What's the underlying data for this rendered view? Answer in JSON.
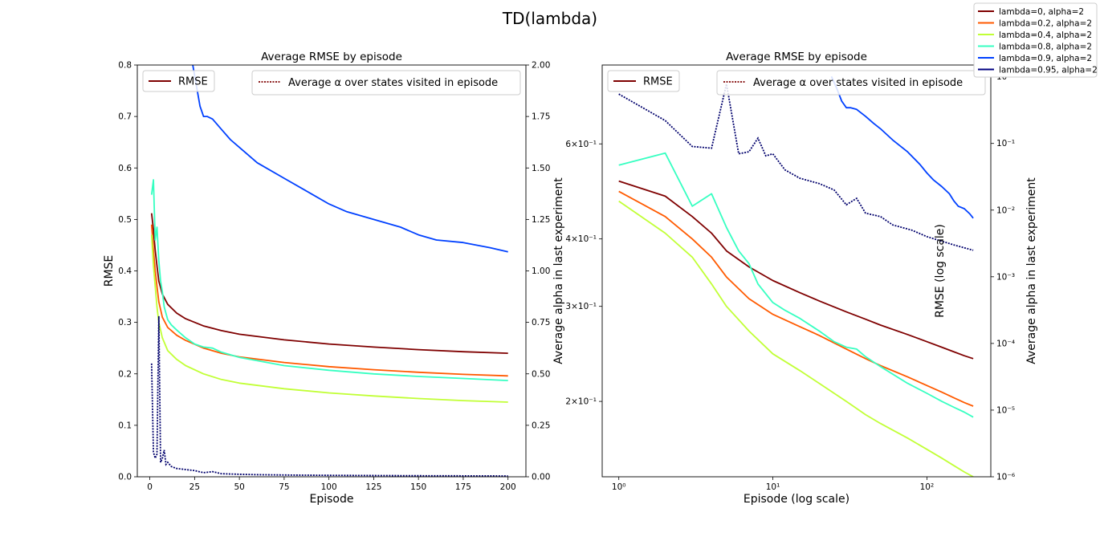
{
  "figure": {
    "title": "TD(lambda)"
  },
  "chart_data": [
    {
      "type": "line",
      "title": "Average RMSE by episode",
      "xlabel": "Episode",
      "ylabel": "RMSE",
      "y2label": "Average alpha in last experiment",
      "xlim": [
        -7,
        210
      ],
      "ylim": [
        0,
        0.8
      ],
      "y2lim": [
        0,
        2.0
      ],
      "xticks": [
        0,
        25,
        50,
        75,
        100,
        125,
        150,
        175,
        200
      ],
      "yticks": [
        0.0,
        0.1,
        0.2,
        0.3,
        0.4,
        0.5,
        0.6,
        0.7,
        0.8
      ],
      "y2ticks": [
        0.0,
        0.25,
        0.5,
        0.75,
        1.0,
        1.25,
        1.5,
        1.75,
        2.0
      ],
      "legend_left": {
        "label": "RMSE",
        "placement": "upper-left"
      },
      "legend_right": {
        "label": "Average α over states visited in episode",
        "placement": "upper-right"
      },
      "alpha_series": {
        "name": "Average α over states visited in episode",
        "color": "#00006c",
        "x": [
          1,
          2,
          3,
          4,
          5,
          6,
          7,
          8,
          9,
          10,
          12,
          15,
          20,
          25,
          30,
          35,
          40,
          50,
          60,
          80,
          100,
          150,
          200
        ],
        "y": [
          0.55,
          0.12,
          0.09,
          0.11,
          0.78,
          0.07,
          0.09,
          0.13,
          0.06,
          0.07,
          0.05,
          0.04,
          0.035,
          0.03,
          0.02,
          0.025,
          0.015,
          0.012,
          0.01,
          0.008,
          0.007,
          0.005,
          0.004
        ]
      },
      "series": [
        {
          "name": "lambda=0, alpha=2",
          "color": "#7f0000",
          "x": [
            1,
            2,
            3,
            4,
            5,
            7,
            10,
            15,
            20,
            30,
            40,
            50,
            75,
            100,
            125,
            150,
            175,
            200
          ],
          "y": [
            0.512,
            0.48,
            0.44,
            0.41,
            0.38,
            0.355,
            0.335,
            0.318,
            0.307,
            0.293,
            0.284,
            0.277,
            0.266,
            0.258,
            0.252,
            0.247,
            0.243,
            0.24
          ]
        },
        {
          "name": "lambda=0.2, alpha=2",
          "color": "#ff5a00",
          "x": [
            1,
            2,
            3,
            4,
            5,
            7,
            10,
            15,
            20,
            30,
            40,
            50,
            75,
            100,
            125,
            150,
            175,
            200
          ],
          "y": [
            0.49,
            0.44,
            0.4,
            0.37,
            0.34,
            0.31,
            0.29,
            0.275,
            0.265,
            0.25,
            0.24,
            0.233,
            0.222,
            0.214,
            0.208,
            0.203,
            0.199,
            0.196
          ]
        },
        {
          "name": "lambda=0.4, alpha=2",
          "color": "#c1ff36",
          "x": [
            1,
            2,
            3,
            4,
            5,
            7,
            10,
            15,
            20,
            30,
            40,
            50,
            75,
            100,
            125,
            150,
            175,
            200
          ],
          "y": [
            0.47,
            0.41,
            0.37,
            0.33,
            0.3,
            0.27,
            0.245,
            0.228,
            0.216,
            0.2,
            0.189,
            0.182,
            0.171,
            0.163,
            0.157,
            0.152,
            0.148,
            0.145
          ]
        },
        {
          "name": "lambda=0.8, alpha=2",
          "color": "#36ffc1",
          "x": [
            1,
            2,
            3,
            4,
            5,
            6,
            7,
            8,
            10,
            12,
            15,
            20,
            25,
            30,
            35,
            40,
            50,
            75,
            100,
            125,
            150,
            175,
            200
          ],
          "y": [
            0.548,
            0.577,
            0.46,
            0.485,
            0.42,
            0.38,
            0.36,
            0.33,
            0.305,
            0.295,
            0.285,
            0.27,
            0.258,
            0.252,
            0.25,
            0.242,
            0.232,
            0.216,
            0.207,
            0.2,
            0.195,
            0.191,
            0.187
          ]
        },
        {
          "name": "lambda=0.9, alpha=2",
          "color": "#0040ff",
          "x": [
            24,
            26,
            28,
            30,
            32,
            35,
            40,
            45,
            50,
            60,
            75,
            90,
            100,
            110,
            125,
            140,
            150,
            160,
            175,
            190,
            200
          ],
          "y": [
            0.8,
            0.76,
            0.72,
            0.7,
            0.7,
            0.695,
            0.675,
            0.655,
            0.64,
            0.61,
            0.58,
            0.55,
            0.53,
            0.515,
            0.5,
            0.485,
            0.47,
            0.46,
            0.455,
            0.445,
            0.437
          ]
        },
        {
          "name": "lambda=0.95, alpha=2",
          "color": "#000080",
          "x": [],
          "y": []
        }
      ]
    },
    {
      "type": "line",
      "title": "Average RMSE by episode",
      "xlabel": "Episode (log scale)",
      "ylabel": "RMSE (log scale)",
      "y2label": "Average alpha in last experiment",
      "xscale": "log",
      "yscale": "log",
      "y2scale": "log",
      "xlim": [
        0.78,
        260
      ],
      "ylim": [
        0.145,
        0.84
      ],
      "y2lim": [
        1e-06,
        1.5
      ],
      "xticks": [
        1,
        10,
        100
      ],
      "xtick_labels": [
        "10⁰",
        "10¹",
        "10²"
      ],
      "yticks": [
        0.2,
        0.3,
        0.4,
        0.6
      ],
      "ytick_labels": [
        "2×10⁻¹",
        "3×10⁻¹",
        "4×10⁻¹",
        "6×10⁻¹"
      ],
      "y2ticks": [
        1e-06,
        1e-05,
        0.0001,
        0.001,
        0.01,
        0.1,
        1
      ],
      "y2tick_labels": [
        "10⁻⁶",
        "10⁻⁵",
        "10⁻⁴",
        "10⁻³",
        "10⁻²",
        "10⁻¹",
        "10⁰"
      ],
      "legend_left": {
        "label": "RMSE",
        "placement": "upper-left"
      },
      "legend_right": {
        "label": "Average α over states visited in episode",
        "placement": "upper-right"
      },
      "alpha_series": {
        "name": "Average α over states visited in episode",
        "color": "#00006c",
        "x": [
          1,
          2,
          3,
          4,
          5,
          6,
          7,
          8,
          9,
          10,
          12,
          15,
          20,
          25,
          30,
          35,
          40,
          50,
          60,
          80,
          100,
          150,
          200
        ],
        "y": [
          0.55,
          0.22,
          0.09,
          0.085,
          0.78,
          0.07,
          0.075,
          0.12,
          0.065,
          0.07,
          0.04,
          0.03,
          0.025,
          0.02,
          0.012,
          0.015,
          0.009,
          0.008,
          0.006,
          0.005,
          0.004,
          0.003,
          0.0025
        ]
      },
      "series": [
        {
          "name": "lambda=0, alpha=2",
          "color": "#7f0000",
          "x": [
            1,
            2,
            3,
            4,
            5,
            7,
            10,
            15,
            20,
            30,
            40,
            50,
            75,
            100,
            125,
            150,
            175,
            200
          ],
          "y": [
            0.512,
            0.48,
            0.44,
            0.41,
            0.38,
            0.355,
            0.335,
            0.318,
            0.307,
            0.293,
            0.284,
            0.277,
            0.266,
            0.258,
            0.252,
            0.247,
            0.243,
            0.24
          ]
        },
        {
          "name": "lambda=0.2, alpha=2",
          "color": "#ff5a00",
          "x": [
            1,
            2,
            3,
            4,
            5,
            7,
            10,
            15,
            20,
            30,
            40,
            50,
            75,
            100,
            125,
            150,
            175,
            200
          ],
          "y": [
            0.49,
            0.44,
            0.4,
            0.37,
            0.34,
            0.31,
            0.29,
            0.275,
            0.265,
            0.25,
            0.24,
            0.233,
            0.222,
            0.214,
            0.208,
            0.203,
            0.199,
            0.196
          ]
        },
        {
          "name": "lambda=0.4, alpha=2",
          "color": "#c1ff36",
          "x": [
            1,
            2,
            3,
            4,
            5,
            7,
            10,
            15,
            20,
            30,
            40,
            50,
            75,
            100,
            125,
            150,
            175,
            200
          ],
          "y": [
            0.47,
            0.41,
            0.37,
            0.33,
            0.3,
            0.27,
            0.245,
            0.228,
            0.216,
            0.2,
            0.189,
            0.182,
            0.171,
            0.163,
            0.157,
            0.152,
            0.148,
            0.145
          ]
        },
        {
          "name": "lambda=0.8, alpha=2",
          "color": "#36ffc1",
          "x": [
            1,
            2,
            3,
            4,
            5,
            6,
            7,
            8,
            10,
            12,
            15,
            20,
            25,
            30,
            35,
            40,
            50,
            75,
            100,
            125,
            150,
            175,
            200
          ],
          "y": [
            0.548,
            0.577,
            0.46,
            0.485,
            0.42,
            0.38,
            0.36,
            0.33,
            0.305,
            0.295,
            0.285,
            0.27,
            0.258,
            0.252,
            0.25,
            0.242,
            0.232,
            0.216,
            0.207,
            0.2,
            0.195,
            0.191,
            0.187
          ]
        },
        {
          "name": "lambda=0.9, alpha=2",
          "color": "#0040ff",
          "x": [
            24,
            26,
            28,
            30,
            32,
            35,
            40,
            45,
            50,
            60,
            75,
            90,
            100,
            110,
            125,
            140,
            150,
            160,
            175,
            190,
            200
          ],
          "y": [
            0.8,
            0.76,
            0.72,
            0.7,
            0.7,
            0.695,
            0.675,
            0.655,
            0.64,
            0.61,
            0.58,
            0.55,
            0.53,
            0.515,
            0.5,
            0.485,
            0.47,
            0.46,
            0.455,
            0.445,
            0.437
          ]
        },
        {
          "name": "lambda=0.95, alpha=2",
          "color": "#000080",
          "x": [],
          "y": []
        }
      ]
    }
  ],
  "figure_legend": {
    "placement": "upper-right",
    "entries": [
      {
        "label": "lambda=0, alpha=2",
        "color": "#7f0000"
      },
      {
        "label": "lambda=0.2, alpha=2",
        "color": "#ff5a00"
      },
      {
        "label": "lambda=0.4, alpha=2",
        "color": "#c1ff36"
      },
      {
        "label": "lambda=0.8, alpha=2",
        "color": "#36ffc1"
      },
      {
        "label": "lambda=0.9, alpha=2",
        "color": "#0040ff"
      },
      {
        "label": "lambda=0.95, alpha=2",
        "color": "#000080"
      }
    ]
  }
}
